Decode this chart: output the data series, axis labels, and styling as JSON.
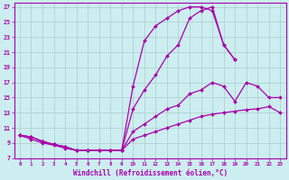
{
  "background_color": "#cceef0",
  "grid_color": "#aacccc",
  "line_color": "#aa00aa",
  "xlabel": "Windchill (Refroidissement éolien,°C)",
  "ylabel_ticks": [
    7,
    9,
    11,
    13,
    15,
    17,
    19,
    21,
    23,
    25,
    27
  ],
  "xtick_labels": [
    "0",
    "1",
    "2",
    "3",
    "4",
    "5",
    "6",
    "7",
    "8",
    "9",
    "10",
    "11",
    "12",
    "13",
    "14",
    "15",
    "16",
    "17",
    "18",
    "19",
    "20",
    "21",
    "22",
    "23"
  ],
  "xlim": [
    -0.5,
    23.5
  ],
  "ylim": [
    7,
    27.5
  ],
  "curve_peak_x": [
    0,
    1,
    2,
    3,
    4,
    5,
    6,
    7,
    8,
    9,
    10,
    11,
    12,
    13,
    14,
    15,
    16,
    17,
    18,
    19
  ],
  "curve_peak_y": [
    10,
    9.8,
    9.2,
    8.8,
    8.5,
    8.0,
    8.0,
    8.0,
    8.0,
    8.0,
    16.5,
    22.5,
    24.5,
    25.5,
    26.5,
    27.0,
    27.0,
    26.5,
    22.0,
    20.0
  ],
  "curve_top_x": [
    0,
    1,
    2,
    3,
    4,
    5,
    6,
    7,
    8,
    9,
    10,
    11,
    12,
    13,
    14,
    15,
    16,
    17,
    18,
    19
  ],
  "curve_top_y": [
    10,
    9.8,
    9.2,
    8.8,
    8.5,
    8.0,
    8.0,
    8.0,
    8.0,
    8.0,
    13.5,
    16.0,
    18.0,
    20.5,
    22.0,
    25.5,
    26.5,
    27.0,
    22.0,
    20.0
  ],
  "curve_mid_x": [
    0,
    1,
    2,
    3,
    4,
    5,
    6,
    7,
    8,
    9,
    10,
    11,
    12,
    13,
    14,
    15,
    16,
    17,
    18,
    19,
    20,
    21,
    22,
    23
  ],
  "curve_mid_y": [
    10,
    9.8,
    9.2,
    8.8,
    8.5,
    8.0,
    8.0,
    8.0,
    8.0,
    8.0,
    10.5,
    11.5,
    12.5,
    13.5,
    14.0,
    15.5,
    16.0,
    17.0,
    16.5,
    14.5,
    17.0,
    16.5,
    15.0,
    15.0
  ],
  "curve_low_x": [
    0,
    1,
    2,
    3,
    4,
    5,
    6,
    7,
    8,
    9,
    10,
    11,
    12,
    13,
    14,
    15,
    16,
    17,
    18,
    19,
    20,
    21,
    22,
    23
  ],
  "curve_low_y": [
    10,
    9.5,
    9.0,
    8.7,
    8.3,
    8.0,
    8.0,
    8.0,
    8.0,
    8.0,
    9.5,
    10.0,
    10.5,
    11.0,
    11.5,
    12.0,
    12.5,
    12.8,
    13.0,
    13.2,
    13.4,
    13.5,
    13.8,
    13.0
  ]
}
